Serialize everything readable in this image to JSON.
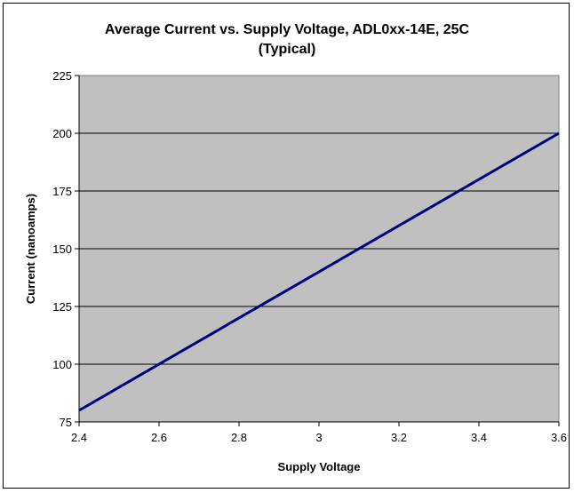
{
  "chart_data": {
    "type": "line",
    "title": "Average Current vs. Supply Voltage, ADL0xx-14E, 25C",
    "subtitle": "(Typical)",
    "xlabel": "Supply Voltage",
    "ylabel": "Current (nanoamps)",
    "xlim": [
      2.4,
      3.6
    ],
    "ylim": [
      75,
      225
    ],
    "x_ticks": [
      "2.4",
      "2.6",
      "2.8",
      "3",
      "3.2",
      "3.4",
      "3.6"
    ],
    "y_ticks": [
      "75",
      "100",
      "125",
      "150",
      "175",
      "200",
      "225"
    ],
    "grid": "horizontal",
    "legend": "none",
    "plot_background": "#c0c0c0",
    "series": [
      {
        "color": "#000080",
        "x": [
          2.4,
          3.6
        ],
        "y": [
          80,
          200
        ]
      }
    ]
  }
}
